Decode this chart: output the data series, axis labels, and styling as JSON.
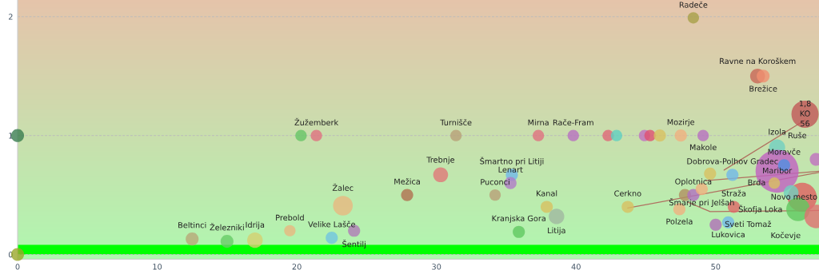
{
  "chart_data": {
    "type": "bubble",
    "xlim": [
      0,
      57.4
    ],
    "ylim": [
      -0.04,
      2.14
    ],
    "xticks": [
      0,
      10,
      20,
      30,
      40,
      50
    ],
    "yticks": [
      0,
      1,
      2
    ],
    "grid": "y",
    "legend": false,
    "bands": [
      {
        "axis": "y",
        "from": 0,
        "to": 0.08,
        "color": "#00ff00"
      }
    ],
    "series": [
      {
        "x": [
          0,
          0,
          12.5,
          15.0,
          17.0,
          19.5,
          22.5,
          24.1,
          23.3,
          27.9,
          30.3,
          20.3,
          21.4,
          31.4,
          37.3,
          35.4,
          35.3,
          34.2,
          35.9,
          48.4,
          53.0,
          53.4,
          39.8,
          42.3,
          42.9,
          44.9,
          45.3,
          46.0,
          47.5,
          49.1,
          56.4,
          54.4,
          54.4,
          54.9,
          49.6,
          51.2,
          47.8,
          48.4,
          49.0,
          43.7,
          47.4,
          37.9,
          38.6,
          51.3,
          50.9,
          50.0,
          54.2,
          56.2,
          55.4,
          55.9,
          57.2,
          57.2
        ],
        "values": [
          1,
          0,
          0.13,
          0.11,
          0.12,
          0.2,
          0.14,
          0.2,
          0.41,
          0.5,
          0.67,
          1,
          1,
          1,
          1,
          0.67,
          0.6,
          0.5,
          0.19,
          1.99,
          1.5,
          1.5,
          1,
          1,
          1,
          1,
          1,
          1,
          1,
          1,
          1.18,
          0.9,
          0.7,
          0.75,
          0.68,
          0.67,
          0.5,
          0.5,
          0.55,
          0.4,
          0.38,
          0.4,
          0.32,
          0.4,
          0.27,
          0.25,
          0.6,
          0.48,
          0.52,
          0.38,
          0.32,
          0.8
        ],
        "sizes": [
          0.09,
          0.09,
          0.09,
          0.09,
          0.13,
          0.07,
          0.08,
          0.08,
          0.21,
          0.08,
          0.12,
          0.07,
          0.07,
          0.07,
          0.07,
          0.08,
          0.08,
          0.07,
          0.08,
          0.07,
          0.12,
          0.09,
          0.07,
          0.07,
          0.07,
          0.07,
          0.07,
          0.08,
          0.08,
          0.07,
          0.4,
          0.14,
          1.0,
          0.08,
          0.08,
          0.08,
          0.08,
          0.08,
          0.08,
          0.08,
          0.08,
          0.08,
          0.13,
          0.08,
          0.08,
          0.08,
          0.07,
          0.46,
          0.12,
          0.3,
          0.3,
          0.09
        ],
        "colors": [
          "#3a7d50",
          "#9aa82a",
          "#b8a878",
          "#66cc66",
          "#d4d070",
          "#e8b880",
          "#70c4e0",
          "#b07cb8",
          "#e8b880",
          "#b07050",
          "#e07878",
          "#66c466",
          "#e07080",
          "#b8a078",
          "#e07080",
          "#70b8e8",
          "#b07cc8",
          "#b8a078",
          "#60c860",
          "#a8a048",
          "#c86858",
          "#f09070",
          "#b870c0",
          "#e06878",
          "#60d0c0",
          "#c070c0",
          "#e05070",
          "#d8c060",
          "#f0b080",
          "#b870c0",
          "#c05858",
          "#70d0c0",
          "#c060c0",
          "#5090e0",
          "#d8c060",
          "#70b8e8",
          "#b09060",
          "#b070c0",
          "#f0b080",
          "#d8c060",
          "#f0b080",
          "#d8c060",
          "#a0b8a0",
          "#e06868",
          "#70b8e8",
          "#b070b8",
          "#d8c060",
          "#e06060",
          "#70d0c0",
          "#60c860",
          "#e07070",
          "#c070c0"
        ]
      },
      {
        "type": "line",
        "x": [
          43.7,
          57.4
        ],
        "values": [
          0.39,
          0.69
        ],
        "color": "#b07060"
      },
      {
        "type": "line",
        "x": [
          48.0,
          49.6,
          57.4
        ],
        "values": [
          0.44,
          0.36,
          0.37
        ],
        "color": "#b07060"
      },
      {
        "type": "line",
        "x": [
          49.3,
          57.4
        ],
        "values": [
          0.62,
          0.7
        ],
        "color": "#b07060"
      },
      {
        "type": "line",
        "x": [
          50.6,
          56.4
        ],
        "values": [
          0.71,
          1.13
        ],
        "color": "#b07060"
      }
    ],
    "annotations": [
      {
        "text": "Beltinci",
        "x": 12.5,
        "y": 0.13
      },
      {
        "text": "Železniki",
        "x": 15.0,
        "y": 0.11
      },
      {
        "text": "Idrija",
        "x": 17.0,
        "y": 0.12
      },
      {
        "text": "Prebold",
        "x": 19.5,
        "y": 0.2
      },
      {
        "text": "Velike Lašče",
        "x": 22.5,
        "y": 0.14
      },
      {
        "text": "Šentilj",
        "x": 24.1,
        "y": 0.2
      },
      {
        "text": "Žalec",
        "x": 23.3,
        "y": 0.41
      },
      {
        "text": "Mežica",
        "x": 27.9,
        "y": 0.5
      },
      {
        "text": "Trebnje",
        "x": 30.3,
        "y": 0.67
      },
      {
        "text": "Žužemberk",
        "x": 21.4,
        "y": 1
      },
      {
        "text": "Turnišče",
        "x": 31.4,
        "y": 1
      },
      {
        "text": "Mirna",
        "x": 37.3,
        "y": 1
      },
      {
        "text": "Šmartno pri Litiji",
        "x": 35.4,
        "y": 0.67
      },
      {
        "text": "Lenart",
        "x": 35.3,
        "y": 0.6
      },
      {
        "text": "Puconci",
        "x": 34.2,
        "y": 0.5
      },
      {
        "text": "Kranjska Gora",
        "x": 35.9,
        "y": 0.19
      },
      {
        "text": "Radeče",
        "x": 48.4,
        "y": 1.99
      },
      {
        "text": "Ravne na Koroškem",
        "x": 53.0,
        "y": 1.5
      },
      {
        "text": "Brežice",
        "x": 53.4,
        "y": 1.5
      },
      {
        "text": "Rače-Fram",
        "x": 39.8,
        "y": 1
      },
      {
        "text": "Mozirje",
        "x": 47.5,
        "y": 1
      },
      {
        "text": "Makole",
        "x": 49.1,
        "y": 1
      },
      {
        "text": "Izola",
        "x": 54.4,
        "y": 0.9
      },
      {
        "text": "Maribor",
        "x": 54.4,
        "y": 0.7
      },
      {
        "text": "Moravče",
        "x": 54.9,
        "y": 0.75
      },
      {
        "text": "Dobrova-Polhov Gradec",
        "x": 51.2,
        "y": 0.67
      },
      {
        "text": "Oplotnica",
        "x": 48.4,
        "y": 0.5
      },
      {
        "text": "Šmarje pri Jelšah",
        "x": 49.0,
        "y": 0.55
      },
      {
        "text": "Cerkno",
        "x": 43.7,
        "y": 0.4
      },
      {
        "text": "Polzela",
        "x": 47.4,
        "y": 0.38
      },
      {
        "text": "Kanal",
        "x": 37.9,
        "y": 0.4
      },
      {
        "text": "Litija",
        "x": 38.6,
        "y": 0.32
      },
      {
        "text": "Straža",
        "x": 51.3,
        "y": 0.4
      },
      {
        "text": "Lukovica",
        "x": 50.9,
        "y": 0.27
      },
      {
        "text": "Sveti Tomaž",
        "x": 50.0,
        "y": 0.25
      },
      {
        "text": "Brda",
        "x": 54.2,
        "y": 0.6
      },
      {
        "text": "Novo mesto",
        "x": 56.2,
        "y": 0.48
      },
      {
        "text": "Škofja Loka",
        "x": 55.9,
        "y": 0.38
      },
      {
        "text": "Kočevje",
        "x": 57.2,
        "y": 0.32
      },
      {
        "text": "Ruše",
        "x": 57.2,
        "y": 0.8
      },
      {
        "text": "1,8",
        "x": 56.4,
        "y": 1.18
      },
      {
        "text": "KO",
        "x": 56.4,
        "y": 1.18
      },
      {
        "text": "56",
        "x": 56.4,
        "y": 1.18
      }
    ]
  }
}
